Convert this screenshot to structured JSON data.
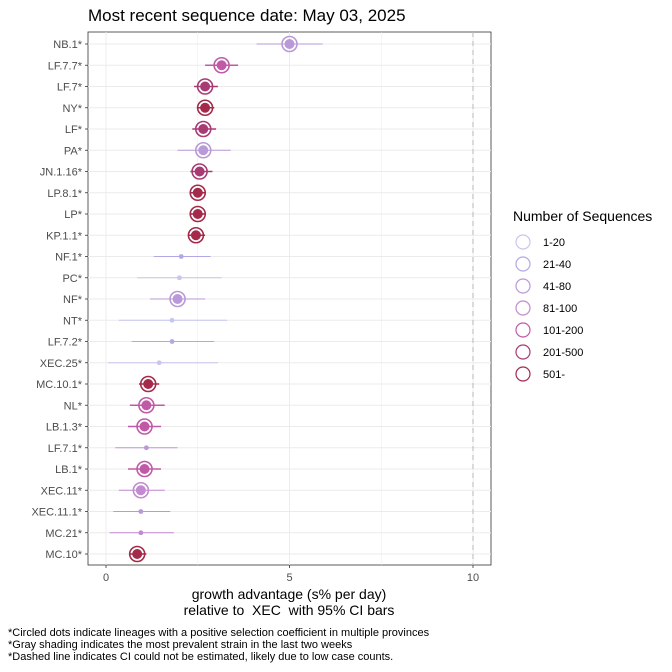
{
  "chart_data": {
    "type": "scatter",
    "title": "Most recent sequence date: May 03, 2025",
    "xlabel_line1": "growth advantage (s% per day)",
    "xlabel_line2": "relative to  XEC  with 95% CI bars",
    "xlim": [
      -0.3,
      10.5
    ],
    "xticks": [
      0,
      5,
      10
    ],
    "xticks_labels": [
      "0",
      "5",
      "10"
    ],
    "dashed_line_x": 10,
    "grid": true,
    "legend_position": "right",
    "legend": {
      "title": "Number of Sequences",
      "entries": [
        {
          "label": "1-20",
          "color": "#c6c6ef"
        },
        {
          "label": "21-40",
          "color": "#b2a8e6"
        },
        {
          "label": "41-80",
          "color": "#b999d8"
        },
        {
          "label": "81-100",
          "color": "#c28ad0"
        },
        {
          "label": "101-200",
          "color": "#c05aa6"
        },
        {
          "label": "201-500",
          "color": "#a83a74"
        },
        {
          "label": "501-",
          "color": "#a32a4a"
        }
      ]
    },
    "points": [
      {
        "lineage": "NB.1*",
        "value": 5.0,
        "ci": [
          4.1,
          5.9
        ],
        "bin": 2,
        "circled": true
      },
      {
        "lineage": "LF.7.7*",
        "value": 3.15,
        "ci": [
          2.7,
          3.6
        ],
        "bin": 4,
        "circled": true
      },
      {
        "lineage": "LF.7*",
        "value": 2.7,
        "ci": [
          2.4,
          3.05
        ],
        "bin": 5,
        "circled": true
      },
      {
        "lineage": "NY*",
        "value": 2.7,
        "ci": [
          2.5,
          2.95
        ],
        "bin": 6,
        "circled": true
      },
      {
        "lineage": "LF*",
        "value": 2.65,
        "ci": [
          2.35,
          3.0
        ],
        "bin": 5,
        "circled": true
      },
      {
        "lineage": "PA*",
        "value": 2.65,
        "ci": [
          1.95,
          3.4
        ],
        "bin": 2,
        "circled": true
      },
      {
        "lineage": "JN.1.16*",
        "value": 2.55,
        "ci": [
          2.3,
          2.9
        ],
        "bin": 5,
        "circled": true
      },
      {
        "lineage": "LP.8.1*",
        "value": 2.5,
        "ci": [
          2.3,
          2.7
        ],
        "bin": 6,
        "circled": true
      },
      {
        "lineage": "LP*",
        "value": 2.5,
        "ci": [
          2.3,
          2.7
        ],
        "bin": 6,
        "circled": true
      },
      {
        "lineage": "KP.1.1*",
        "value": 2.45,
        "ci": [
          2.25,
          2.7
        ],
        "bin": 6,
        "circled": true
      },
      {
        "lineage": "NF.1*",
        "value": 2.05,
        "ci": [
          1.3,
          2.85
        ],
        "bin": 1,
        "circled": false
      },
      {
        "lineage": "PC*",
        "value": 2.0,
        "ci": [
          0.85,
          3.15
        ],
        "bin": 0,
        "circled": false
      },
      {
        "lineage": "NF*",
        "value": 1.95,
        "ci": [
          1.2,
          2.7
        ],
        "bin": 2,
        "circled": true
      },
      {
        "lineage": "NT*",
        "value": 1.8,
        "ci": [
          0.35,
          3.3
        ],
        "bin": 0,
        "circled": false
      },
      {
        "lineage": "LF.7.2*",
        "value": 1.8,
        "ci": [
          0.7,
          2.95
        ],
        "bin": 1,
        "circled": false
      },
      {
        "lineage": "XEC.25*",
        "value": 1.45,
        "ci": [
          0.05,
          3.05
        ],
        "bin": 0,
        "circled": false
      },
      {
        "lineage": "MC.10.1*",
        "value": 1.15,
        "ci": [
          0.9,
          1.45
        ],
        "bin": 6,
        "circled": true
      },
      {
        "lineage": "NL*",
        "value": 1.1,
        "ci": [
          0.65,
          1.6
        ],
        "bin": 4,
        "circled": true
      },
      {
        "lineage": "LB.1.3*",
        "value": 1.05,
        "ci": [
          0.6,
          1.5
        ],
        "bin": 4,
        "circled": true
      },
      {
        "lineage": "LF.7.1*",
        "value": 1.1,
        "ci": [
          0.25,
          1.95
        ],
        "bin": 2,
        "circled": false
      },
      {
        "lineage": "LB.1*",
        "value": 1.05,
        "ci": [
          0.6,
          1.5
        ],
        "bin": 4,
        "circled": true
      },
      {
        "lineage": "XEC.11*",
        "value": 0.95,
        "ci": [
          0.35,
          1.6
        ],
        "bin": 3,
        "circled": true
      },
      {
        "lineage": "XEC.11.1*",
        "value": 0.95,
        "ci": [
          0.2,
          1.75
        ],
        "bin": 2,
        "circled": false
      },
      {
        "lineage": "MC.21*",
        "value": 0.95,
        "ci": [
          0.1,
          1.85
        ],
        "bin": 3,
        "circled": false
      },
      {
        "lineage": "MC.10*",
        "value": 0.85,
        "ci": [
          0.65,
          1.1
        ],
        "bin": 6,
        "circled": true
      }
    ]
  },
  "footnotes": [
    "*Circled dots indicate lineages with a positive selection coefficient in multiple provinces",
    "*Gray shading indicates the most prevalent strain in the last two weeks",
    "*Dashed line indicates CI could not be estimated, likely due to low case counts."
  ]
}
